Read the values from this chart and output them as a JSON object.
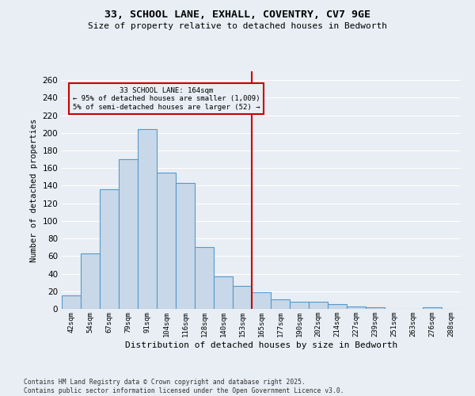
{
  "title_line1": "33, SCHOOL LANE, EXHALL, COVENTRY, CV7 9GE",
  "title_line2": "Size of property relative to detached houses in Bedworth",
  "xlabel": "Distribution of detached houses by size in Bedworth",
  "ylabel": "Number of detached properties",
  "footnote": "Contains HM Land Registry data © Crown copyright and database right 2025.\nContains public sector information licensed under the Open Government Licence v3.0.",
  "categories": [
    "42sqm",
    "54sqm",
    "67sqm",
    "79sqm",
    "91sqm",
    "104sqm",
    "116sqm",
    "128sqm",
    "140sqm",
    "153sqm",
    "165sqm",
    "177sqm",
    "190sqm",
    "202sqm",
    "214sqm",
    "227sqm",
    "239sqm",
    "251sqm",
    "263sqm",
    "276sqm",
    "288sqm"
  ],
  "values": [
    15,
    63,
    136,
    170,
    204,
    155,
    143,
    70,
    37,
    26,
    19,
    11,
    8,
    8,
    5,
    3,
    2,
    0,
    0,
    2,
    0
  ],
  "bar_color": "#c8d8e8",
  "bar_edge_color": "#5599cc",
  "ylim": [
    0,
    270
  ],
  "yticks": [
    0,
    20,
    40,
    60,
    80,
    100,
    120,
    140,
    160,
    180,
    200,
    220,
    240,
    260
  ],
  "vline_x_index": 10,
  "vline_color": "#cc0000",
  "annotation_title": "33 SCHOOL LANE: 164sqm",
  "annotation_line1": "← 95% of detached houses are smaller (1,009)",
  "annotation_line2": "5% of semi-detached houses are larger (52) →",
  "annotation_box_color": "#cc0000",
  "bg_color": "#e8eef4",
  "grid_color": "#ffffff"
}
